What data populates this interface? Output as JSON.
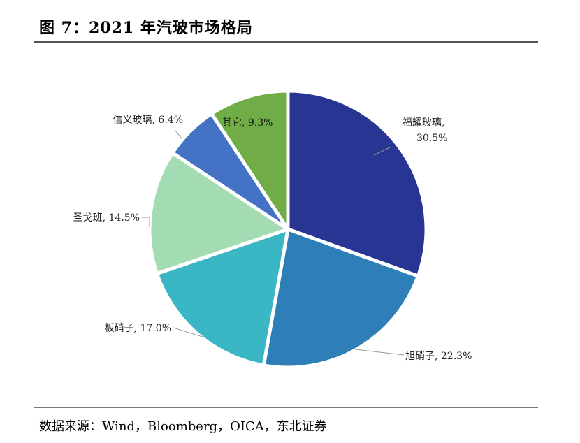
{
  "header": {
    "title": "图 7：2021 年汽玻市场格局"
  },
  "footer": {
    "source": "数据来源：Wind，Bloomberg，OICA，东北证券"
  },
  "chart_data": {
    "type": "pie",
    "title": "",
    "slices": [
      {
        "name": "福耀玻璃",
        "value": 30.5,
        "label": "30.5%",
        "color": "#283593"
      },
      {
        "name": "旭硝子",
        "value": 22.3,
        "label": "22.3%",
        "color": "#2e7fb8"
      },
      {
        "name": "板硝子",
        "value": 17.0,
        "label": "17.0%",
        "color": "#3bb6c5"
      },
      {
        "name": "圣戈班",
        "value": 14.5,
        "label": "14.5%",
        "color": "#a3dbb2"
      },
      {
        "name": "信义玻璃",
        "value": 6.4,
        "label": "6.4%",
        "color": "#4472c4"
      },
      {
        "name": "其它",
        "value": 9.3,
        "label": "9.3%",
        "color": "#70ad47"
      }
    ]
  }
}
